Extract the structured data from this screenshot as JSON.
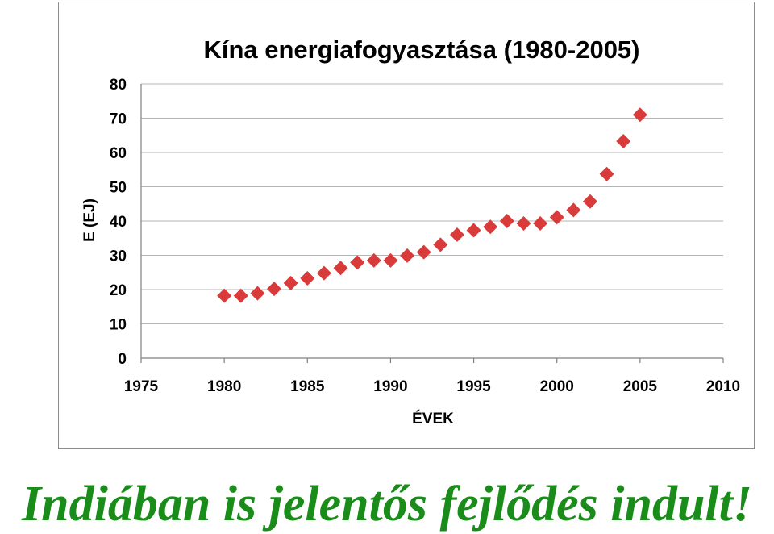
{
  "caption": "Indiában is jelentős fejlődés indult!",
  "colors": {
    "marker": "#d93a3a",
    "grid": "#b5b5b5",
    "caption": "#1a8c1a"
  },
  "chart_data": {
    "type": "scatter",
    "title": "Kína energiafogyasztása (1980-2005)",
    "xlabel": "ÉVEK",
    "ylabel": "E (EJ)",
    "xlim": [
      1975,
      2010
    ],
    "ylim": [
      0,
      80
    ],
    "xticks": [
      1975,
      1980,
      1985,
      1990,
      1995,
      2000,
      2005,
      2010
    ],
    "yticks": [
      0,
      10,
      20,
      30,
      40,
      50,
      60,
      70,
      80
    ],
    "grid": "horizontal",
    "legend": "none",
    "marker": "diamond",
    "x": [
      1980,
      1981,
      1982,
      1983,
      1984,
      1985,
      1986,
      1987,
      1988,
      1989,
      1990,
      1991,
      1992,
      1993,
      1994,
      1995,
      1996,
      1997,
      1998,
      1999,
      2000,
      2001,
      2002,
      2003,
      2004,
      2005
    ],
    "y": [
      18.2,
      18.2,
      18.9,
      20.2,
      21.9,
      23.3,
      24.8,
      26.3,
      27.9,
      28.5,
      28.5,
      29.9,
      30.9,
      33.1,
      36.0,
      37.3,
      38.3,
      40.0,
      39.3,
      39.3,
      41.1,
      43.2,
      45.7,
      53.7,
      63.3,
      71.0
    ]
  }
}
